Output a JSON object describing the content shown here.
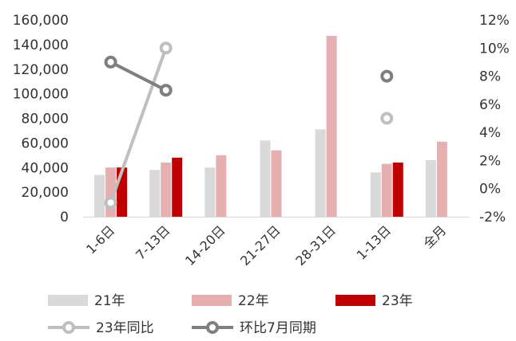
{
  "chart_data": {
    "type": "bar",
    "categories": [
      "1-6日",
      "7-13日",
      "14-20日",
      "21-27日",
      "28-31日",
      "1-13日",
      "全月"
    ],
    "y_left": {
      "ticks": [
        "0",
        "20,000",
        "40,000",
        "60,000",
        "80,000",
        "100,000",
        "120,000",
        "140,000",
        "160,000"
      ],
      "range": [
        0,
        160000
      ]
    },
    "y_right": {
      "ticks": [
        "-2%",
        "0%",
        "2%",
        "4%",
        "6%",
        "8%",
        "10%",
        "12%"
      ],
      "range": [
        -2,
        12
      ]
    },
    "bar_series": [
      {
        "name": "21年",
        "color": "#d9d9d9",
        "values": [
          34000,
          38000,
          40000,
          62000,
          71000,
          36000,
          46000
        ]
      },
      {
        "name": "22年",
        "color": "#e6b0b0",
        "values": [
          40000,
          44000,
          50000,
          54000,
          147000,
          43000,
          61000
        ]
      },
      {
        "name": "23年",
        "color": "#c00000",
        "values": [
          40000,
          48000,
          null,
          null,
          null,
          44000,
          null
        ]
      }
    ],
    "line_series": [
      {
        "name": "23年同比",
        "color": "#bfbfbf",
        "axis": "right",
        "values": [
          -1,
          10,
          null,
          null,
          null,
          5,
          null
        ]
      },
      {
        "name": "环比7月同期",
        "color": "#7f7f7f",
        "axis": "right",
        "values": [
          9,
          7,
          null,
          null,
          null,
          8,
          null
        ]
      }
    ],
    "legend": {
      "placement": "bottom",
      "items": [
        "21年",
        "22年",
        "23年",
        "23年同比",
        "环比7月同期"
      ]
    },
    "grid": false
  }
}
